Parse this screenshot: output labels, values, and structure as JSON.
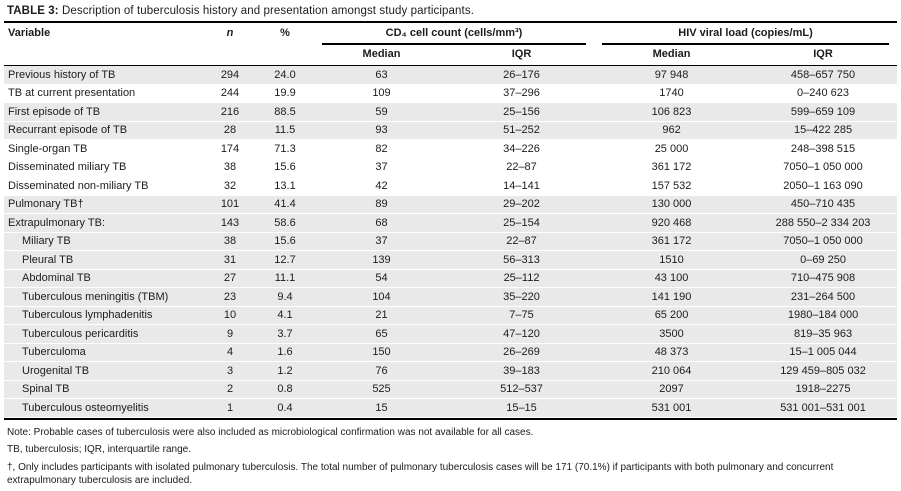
{
  "title": {
    "label": "TABLE 3:",
    "text": "Description of tuberculosis history and presentation amongst study participants."
  },
  "table": {
    "columns": {
      "variable": "Variable",
      "n": "n",
      "percent": "%",
      "cd4_group": "CD₄ cell count (cells/mm³)",
      "hiv_group": "HIV viral load (copies/mL)",
      "median": "Median",
      "iqr": "IQR"
    },
    "rows": [
      {
        "variable": "Previous history of TB",
        "n": "294",
        "percent": "24.0",
        "cd4_median": "63",
        "cd4_iqr": "26–176",
        "hiv_median": "97 948",
        "hiv_iqr": "458–657 750",
        "indent": false,
        "shaded": true
      },
      {
        "variable": "TB at current presentation",
        "n": "244",
        "percent": "19.9",
        "cd4_median": "109",
        "cd4_iqr": "37–296",
        "hiv_median": "1740",
        "hiv_iqr": "0–240 623",
        "indent": false,
        "shaded": false
      },
      {
        "variable": "First episode of TB",
        "n": "216",
        "percent": "88.5",
        "cd4_median": "59",
        "cd4_iqr": "25–156",
        "hiv_median": "106 823",
        "hiv_iqr": "599–659 109",
        "indent": false,
        "shaded": true
      },
      {
        "variable": "Recurrant episode of TB",
        "n": "28",
        "percent": "11.5",
        "cd4_median": "93",
        "cd4_iqr": "51–252",
        "hiv_median": "962",
        "hiv_iqr": "15–422 285",
        "indent": false,
        "shaded": true
      },
      {
        "variable": "Single-organ TB",
        "n": "174",
        "percent": "71.3",
        "cd4_median": "82",
        "cd4_iqr": "34–226",
        "hiv_median": "25 000",
        "hiv_iqr": "248–398 515",
        "indent": false,
        "shaded": false
      },
      {
        "variable": "Disseminated miliary TB",
        "n": "38",
        "percent": "15.6",
        "cd4_median": "37",
        "cd4_iqr": "22–87",
        "hiv_median": "361 172",
        "hiv_iqr": "7050–1 050 000",
        "indent": false,
        "shaded": false
      },
      {
        "variable": "Disseminated non-miliary TB",
        "n": "32",
        "percent": "13.1",
        "cd4_median": "42",
        "cd4_iqr": "14–141",
        "hiv_median": "157 532",
        "hiv_iqr": "2050–1 163 090",
        "indent": false,
        "shaded": false
      },
      {
        "variable": "Pulmonary TB†",
        "n": "101",
        "percent": "41.4",
        "cd4_median": "89",
        "cd4_iqr": "29–202",
        "hiv_median": "130 000",
        "hiv_iqr": "450–710 435",
        "indent": false,
        "shaded": true
      },
      {
        "variable": "Extrapulmonary TB:",
        "n": "143",
        "percent": "58.6",
        "cd4_median": "68",
        "cd4_iqr": "25–154",
        "hiv_median": "920 468",
        "hiv_iqr": "288 550–2 334 203",
        "indent": false,
        "shaded": true
      },
      {
        "variable": "Miliary TB",
        "n": "38",
        "percent": "15.6",
        "cd4_median": "37",
        "cd4_iqr": "22–87",
        "hiv_median": "361 172",
        "hiv_iqr": "7050–1 050 000",
        "indent": true,
        "shaded": true
      },
      {
        "variable": "Pleural TB",
        "n": "31",
        "percent": "12.7",
        "cd4_median": "139",
        "cd4_iqr": "56–313",
        "hiv_median": "1510",
        "hiv_iqr": "0–69 250",
        "indent": true,
        "shaded": true
      },
      {
        "variable": "Abdominal TB",
        "n": "27",
        "percent": "11.1",
        "cd4_median": "54",
        "cd4_iqr": "25–112",
        "hiv_median": "43 100",
        "hiv_iqr": "710–475 908",
        "indent": true,
        "shaded": true
      },
      {
        "variable": "Tuberculous meningitis (TBM)",
        "n": "23",
        "percent": "9.4",
        "cd4_median": "104",
        "cd4_iqr": "35–220",
        "hiv_median": "141 190",
        "hiv_iqr": "231–264 500",
        "indent": true,
        "shaded": true
      },
      {
        "variable": "Tuberculous lymphadenitis",
        "n": "10",
        "percent": "4.1",
        "cd4_median": "21",
        "cd4_iqr": "7–75",
        "hiv_median": "65 200",
        "hiv_iqr": "1980–184 000",
        "indent": true,
        "shaded": true
      },
      {
        "variable": "Tuberculous pericarditis",
        "n": "9",
        "percent": "3.7",
        "cd4_median": "65",
        "cd4_iqr": "47–120",
        "hiv_median": "3500",
        "hiv_iqr": "819–35 963",
        "indent": true,
        "shaded": true
      },
      {
        "variable": "Tuberculoma",
        "n": "4",
        "percent": "1.6",
        "cd4_median": "150",
        "cd4_iqr": "26–269",
        "hiv_median": "48 373",
        "hiv_iqr": "15–1 005 044",
        "indent": true,
        "shaded": true
      },
      {
        "variable": "Urogenital TB",
        "n": "3",
        "percent": "1.2",
        "cd4_median": "76",
        "cd4_iqr": "39–183",
        "hiv_median": "210 064",
        "hiv_iqr": "129 459–805 032",
        "indent": true,
        "shaded": true
      },
      {
        "variable": "Spinal TB",
        "n": "2",
        "percent": "0.8",
        "cd4_median": "525",
        "cd4_iqr": "512–537",
        "hiv_median": "2097",
        "hiv_iqr": "1918–2275",
        "indent": true,
        "shaded": true
      },
      {
        "variable": "Tuberculous osteomyelitis",
        "n": "1",
        "percent": "0.4",
        "cd4_median": "15",
        "cd4_iqr": "15–15",
        "hiv_median": "531 001",
        "hiv_iqr": "531 001–531 001",
        "indent": true,
        "shaded": true
      }
    ]
  },
  "footnotes": [
    "Note: Probable cases of tuberculosis were also included as microbiological confirmation was not available for all cases.",
    "TB, tuberculosis; IQR, interquartile range.",
    "†, Only includes participants with isolated pulmonary tuberculosis. The total number of pulmonary tuberculosis cases will be 171 (70.1%) if participants with both pulmonary and concurrent extrapulmonary tuberculosis are included."
  ]
}
